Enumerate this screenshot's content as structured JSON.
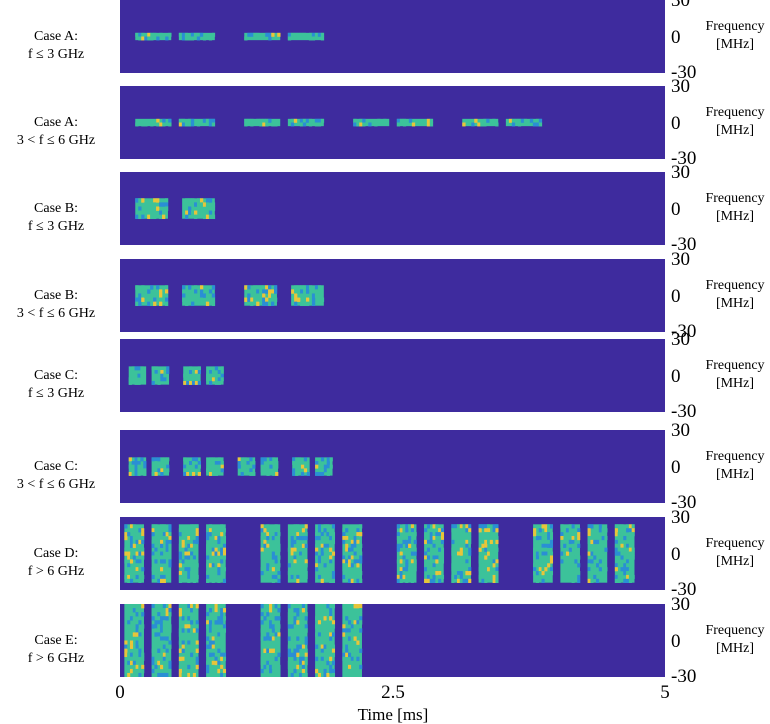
{
  "chart_data": {
    "type": "heatmap",
    "x_axis": {
      "label": "Time [ms]",
      "range": [
        0,
        5
      ],
      "ticks": [
        "0",
        "2.5",
        "5"
      ]
    },
    "y_axis": {
      "label_line1": "Frequency",
      "label_line2": "[MHz]",
      "range": [
        -30,
        30
      ],
      "ticks": [
        "30",
        "0",
        "-30"
      ]
    },
    "colors": {
      "background": "#3e2b9e",
      "low": "#2a8fd4",
      "mid": "#3cc29a",
      "high": "#e8c53a"
    },
    "panels": [
      {
        "label_line1": "Case A:",
        "label_line2": "f ≤ 3 GHz",
        "bursts": [
          [
            0.14,
            0.47,
            0.1
          ],
          [
            0.54,
            0.87,
            0.1
          ],
          [
            1.14,
            1.47,
            0.1
          ],
          [
            1.54,
            1.87,
            0.1
          ]
        ]
      },
      {
        "label_line1": "Case A:",
        "label_line2": "3 < f ≤ 6 GHz",
        "bursts": [
          [
            0.14,
            0.47,
            0.1
          ],
          [
            0.54,
            0.87,
            0.1
          ],
          [
            1.14,
            1.47,
            0.1
          ],
          [
            1.54,
            1.87,
            0.1
          ],
          [
            2.14,
            2.47,
            0.1
          ],
          [
            2.54,
            2.87,
            0.1
          ],
          [
            3.14,
            3.47,
            0.1
          ],
          [
            3.54,
            3.87,
            0.1
          ]
        ]
      },
      {
        "label_line1": "Case B:",
        "label_line2": "f ≤ 3 GHz",
        "bursts": [
          [
            0.14,
            0.44,
            0.28
          ],
          [
            0.57,
            0.87,
            0.28
          ]
        ]
      },
      {
        "label_line1": "Case B:",
        "label_line2": "3 < f ≤ 6 GHz",
        "bursts": [
          [
            0.14,
            0.44,
            0.28
          ],
          [
            0.57,
            0.87,
            0.28
          ],
          [
            1.14,
            1.44,
            0.28
          ],
          [
            1.57,
            1.87,
            0.28
          ]
        ]
      },
      {
        "label_line1": "Case C:",
        "label_line2": "f ≤ 3 GHz",
        "bursts": [
          [
            0.08,
            0.24,
            0.25
          ],
          [
            0.29,
            0.45,
            0.25
          ],
          [
            0.58,
            0.74,
            0.25
          ],
          [
            0.79,
            0.95,
            0.25
          ]
        ]
      },
      {
        "label_line1": "Case C:",
        "label_line2": "3 < f ≤ 6 GHz",
        "bursts": [
          [
            0.08,
            0.24,
            0.25
          ],
          [
            0.29,
            0.45,
            0.25
          ],
          [
            0.58,
            0.74,
            0.25
          ],
          [
            0.79,
            0.95,
            0.25
          ],
          [
            1.08,
            1.24,
            0.25
          ],
          [
            1.29,
            1.45,
            0.25
          ],
          [
            1.58,
            1.74,
            0.25
          ],
          [
            1.79,
            1.95,
            0.25
          ]
        ]
      },
      {
        "label_line1": "Case D:",
        "label_line2": "f > 6 GHz",
        "bursts": [
          [
            0.04,
            0.22,
            0.8
          ],
          [
            0.29,
            0.47,
            0.8
          ],
          [
            0.54,
            0.72,
            0.8
          ],
          [
            0.79,
            0.97,
            0.8
          ],
          [
            1.29,
            1.47,
            0.8
          ],
          [
            1.54,
            1.72,
            0.8
          ],
          [
            1.79,
            1.97,
            0.8
          ],
          [
            2.04,
            2.22,
            0.8
          ],
          [
            2.54,
            2.72,
            0.8
          ],
          [
            2.79,
            2.97,
            0.8
          ],
          [
            3.04,
            3.22,
            0.8
          ],
          [
            3.29,
            3.47,
            0.8
          ],
          [
            3.79,
            3.97,
            0.8
          ],
          [
            4.04,
            4.22,
            0.8
          ],
          [
            4.29,
            4.47,
            0.8
          ],
          [
            4.54,
            4.72,
            0.8
          ]
        ]
      },
      {
        "label_line1": "Case E:",
        "label_line2": "f > 6 GHz",
        "bursts": [
          [
            0.04,
            0.22,
            1.0
          ],
          [
            0.29,
            0.47,
            1.0
          ],
          [
            0.54,
            0.72,
            1.0
          ],
          [
            0.79,
            0.97,
            1.0
          ],
          [
            1.29,
            1.47,
            1.0
          ],
          [
            1.54,
            1.72,
            1.0
          ],
          [
            1.79,
            1.97,
            1.0
          ],
          [
            2.04,
            2.22,
            1.0
          ]
        ]
      }
    ]
  }
}
